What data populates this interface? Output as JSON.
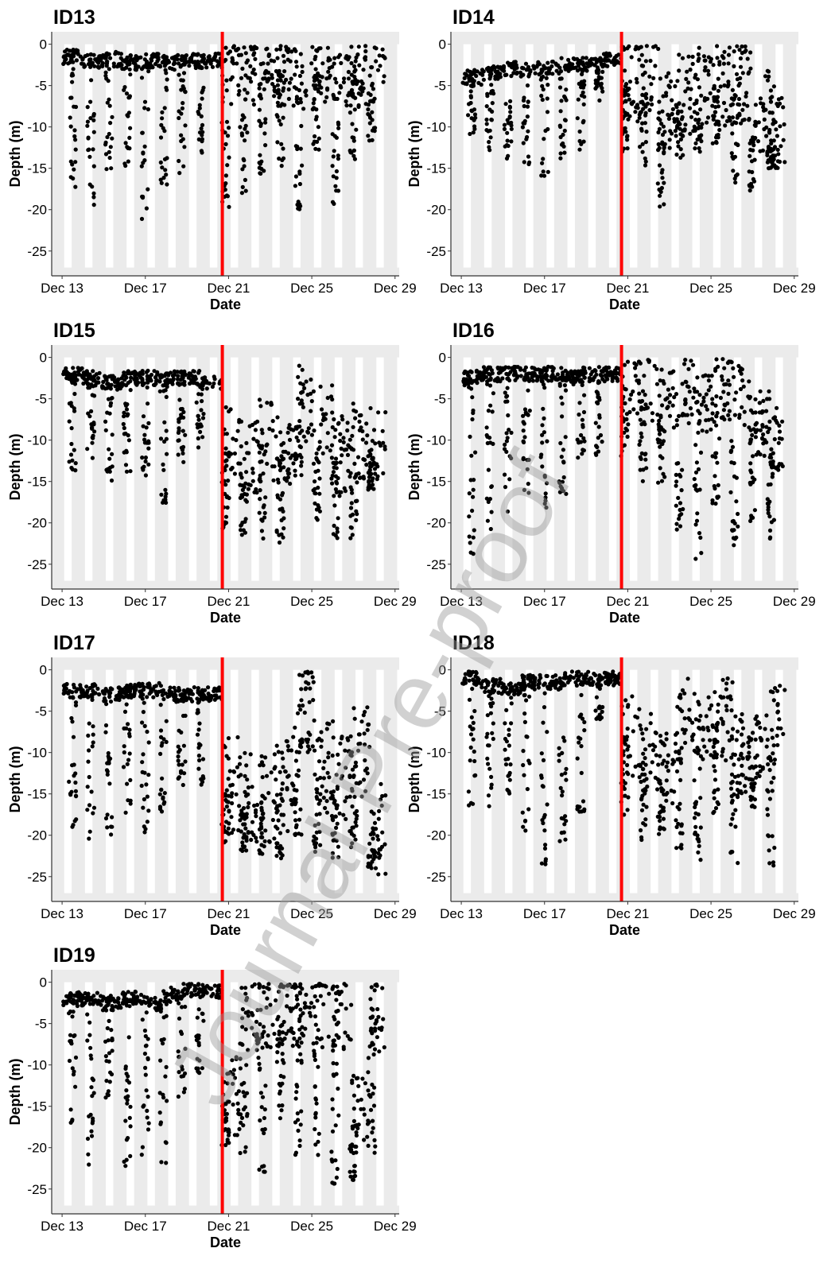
{
  "figure": {
    "watermark": "Journal Pre-proof",
    "colors": {
      "panel_bg": "#ebebeb",
      "night_band": "#ffffff",
      "points": "#000000",
      "event_line": "#ff0000",
      "text": "#000000"
    }
  },
  "chart_data": [
    {
      "type": "scatter",
      "title": "ID13",
      "xlabel": "Date",
      "ylabel": "Depth (m)",
      "xlim": [
        "Dec 12.5",
        "Dec 29.2"
      ],
      "ylim": [
        -28,
        1.5
      ],
      "x_ticks": [
        "Dec 13",
        "Dec 17",
        "Dec 21",
        "Dec 25",
        "Dec 29"
      ],
      "y_ticks": [
        0,
        -5,
        -10,
        -15,
        -20,
        -25
      ],
      "event_line_x": "Dec 20.7",
      "profile": {
        "baseline_before": [
          -1.5,
          -2.0,
          -1.8,
          -2.2,
          -2.0,
          -2.2,
          -2.0,
          -2.0
        ],
        "baseline_after": [
          -3.5,
          -3.5,
          -4.0,
          -3.5,
          -4.0,
          -3.8,
          -3.5,
          -4.0,
          -3.8
        ],
        "dive_max_before": [
          -18,
          -20,
          -16,
          -15,
          -22,
          -17,
          -16,
          -14
        ],
        "dive_max_after": [
          -21,
          -19,
          -17,
          -15,
          -20,
          -13,
          -20,
          -14,
          -12
        ],
        "after_scatter": 4
      }
    },
    {
      "type": "scatter",
      "title": "ID14",
      "xlabel": "Date",
      "ylabel": "Depth (m)",
      "xlim": [
        "Dec 12.5",
        "Dec 29.2"
      ],
      "ylim": [
        -28,
        1.5
      ],
      "x_ticks": [
        "Dec 13",
        "Dec 17",
        "Dec 21",
        "Dec 25",
        "Dec 29"
      ],
      "y_ticks": [
        0,
        -5,
        -10,
        -15,
        -20,
        -25
      ],
      "event_line_x": "Dec 20.7",
      "profile": {
        "baseline_before": [
          -4.0,
          -3.5,
          -3.0,
          -3.0,
          -2.8,
          -2.5,
          -2.5,
          -2.0
        ],
        "baseline_after": [
          -4.5,
          -4.0,
          -8.0,
          -6.0,
          -5.0,
          -5.0,
          -5.0,
          -8.0,
          -10.0
        ],
        "dive_max_before": [
          -11,
          -13,
          -14,
          -15,
          -17,
          -14,
          -13,
          -7
        ],
        "dive_max_after": [
          -13,
          -15,
          -20,
          -14,
          -13,
          -12,
          -17,
          -18,
          -15
        ],
        "after_scatter": 5
      }
    },
    {
      "type": "scatter",
      "title": "ID15",
      "xlabel": "Date",
      "ylabel": "Depth (m)",
      "xlim": [
        "Dec 12.5",
        "Dec 29.2"
      ],
      "ylim": [
        -28,
        1.5
      ],
      "x_ticks": [
        "Dec 13",
        "Dec 17",
        "Dec 21",
        "Dec 25",
        "Dec 29"
      ],
      "y_ticks": [
        0,
        -5,
        -10,
        -15,
        -20,
        -25
      ],
      "event_line_x": "Dec 20.7",
      "profile": {
        "baseline_before": [
          -2.0,
          -2.5,
          -3.0,
          -2.5,
          -2.5,
          -2.5,
          -2.5,
          -3.0
        ],
        "baseline_after": [
          -11,
          -12,
          -10,
          -12,
          -6,
          -8,
          -12,
          -10,
          -11
        ],
        "dive_max_before": [
          -14,
          -13,
          -15,
          -14,
          -15,
          -18,
          -13,
          -11
        ],
        "dive_max_after": [
          -21,
          -22,
          -22,
          -23,
          -15,
          -20,
          -22,
          -22,
          -16
        ],
        "after_scatter": 5
      }
    },
    {
      "type": "scatter",
      "title": "ID16",
      "xlabel": "Date",
      "ylabel": "Depth (m)",
      "xlim": [
        "Dec 12.5",
        "Dec 29.2"
      ],
      "ylim": [
        -28,
        1.5
      ],
      "x_ticks": [
        "Dec 13",
        "Dec 17",
        "Dec 21",
        "Dec 25",
        "Dec 29"
      ],
      "y_ticks": [
        0,
        -5,
        -10,
        -15,
        -20,
        -25
      ],
      "event_line_x": "Dec 20.7",
      "profile": {
        "baseline_before": [
          -2.5,
          -2.0,
          -2.0,
          -2.0,
          -2.0,
          -2.5,
          -2.0,
          -2.0
        ],
        "baseline_after": [
          -3.0,
          -4.0,
          -5.0,
          -4.0,
          -6.0,
          -4.0,
          -5.0,
          -8.0,
          -10.0
        ],
        "dive_max_before": [
          -24,
          -21,
          -20,
          -17,
          -19,
          -17,
          -13,
          -12
        ],
        "dive_max_after": [
          -13,
          -15,
          -16,
          -21,
          -25,
          -18,
          -23,
          -20,
          -22
        ],
        "after_scatter": 4
      }
    },
    {
      "type": "scatter",
      "title": "ID17",
      "xlabel": "Date",
      "ylabel": "Depth (m)",
      "xlim": [
        "Dec 12.5",
        "Dec 29.2"
      ],
      "ylim": [
        -28,
        1.5
      ],
      "x_ticks": [
        "Dec 13",
        "Dec 17",
        "Dec 21",
        "Dec 25",
        "Dec 29"
      ],
      "y_ticks": [
        0,
        -5,
        -10,
        -15,
        -20,
        -25
      ],
      "event_line_x": "Dec 20.7",
      "profile": {
        "baseline_before": [
          -2.5,
          -2.5,
          -3.0,
          -2.5,
          -2.5,
          -3.0,
          -3.0,
          -3.0
        ],
        "baseline_after": [
          -14,
          -16,
          -15,
          -14,
          -4,
          -12,
          -14,
          -10,
          -19
        ],
        "dive_max_before": [
          -19,
          -21,
          -20,
          -18,
          -20,
          -18,
          -15,
          -14
        ],
        "dive_max_after": [
          -21,
          -22,
          -23,
          -23,
          -20,
          -22,
          -23,
          -22,
          -24
        ],
        "after_scatter": 6
      }
    },
    {
      "type": "scatter",
      "title": "ID18",
      "xlabel": "Date",
      "ylabel": "Depth (m)",
      "xlim": [
        "Dec 12.5",
        "Dec 29.2"
      ],
      "ylim": [
        -28,
        1.5
      ],
      "x_ticks": [
        "Dec 13",
        "Dec 17",
        "Dec 21",
        "Dec 25",
        "Dec 29"
      ],
      "y_ticks": [
        0,
        -5,
        -10,
        -15,
        -20,
        -25
      ],
      "event_line_x": "Dec 20.7",
      "profile": {
        "baseline_before": [
          -1.0,
          -2.0,
          -2.5,
          -1.5,
          -1.5,
          -1.0,
          -1.0,
          -1.0
        ],
        "baseline_after": [
          -8,
          -10,
          -12,
          -6,
          -8,
          -6,
          -10,
          -8,
          -6
        ],
        "dive_max_before": [
          -19,
          -17,
          -15,
          -20,
          -25,
          -22,
          -18,
          -6
        ],
        "dive_max_after": [
          -18,
          -21,
          -20,
          -22,
          -24,
          -18,
          -24,
          -17,
          -24
        ],
        "after_scatter": 5
      }
    },
    {
      "type": "scatter",
      "title": "ID19",
      "xlabel": "Date",
      "ylabel": "Depth (m)",
      "xlim": [
        "Dec 12.5",
        "Dec 29.2"
      ],
      "ylim": [
        -28,
        1.5
      ],
      "x_ticks": [
        "Dec 13",
        "Dec 17",
        "Dec 21",
        "Dec 25",
        "Dec 29"
      ],
      "y_ticks": [
        0,
        -5,
        -10,
        -15,
        -20,
        -25
      ],
      "event_line_x": "Dec 20.7",
      "profile": {
        "baseline_before": [
          -2.0,
          -2.0,
          -2.5,
          -2.0,
          -2.5,
          -1.5,
          -1.0,
          -1.0
        ],
        "baseline_after": [
          -14,
          -4,
          -3,
          -3,
          -3,
          -3,
          -4,
          -16,
          -4
        ],
        "dive_max_before": [
          -17,
          -23,
          -15,
          -23,
          -21,
          -22,
          -14,
          -11
        ],
        "dive_max_after": [
          -20,
          -21,
          -23,
          -17,
          -21,
          -21,
          -25,
          -24,
          -22
        ],
        "after_scatter": 5
      }
    }
  ]
}
